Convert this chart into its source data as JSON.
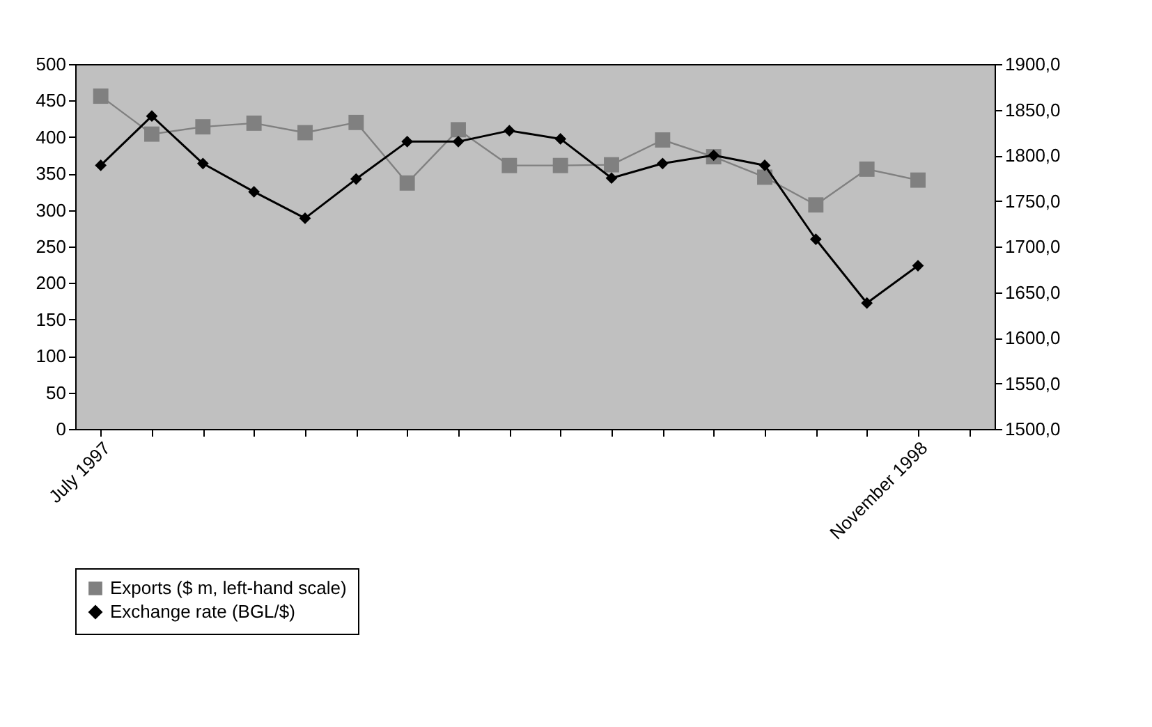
{
  "chart_data": {
    "type": "line",
    "categories": [
      "July 1997",
      null,
      null,
      null,
      null,
      null,
      null,
      null,
      null,
      null,
      null,
      null,
      null,
      null,
      null,
      null,
      "November 1998",
      null
    ],
    "series": [
      {
        "name": "Exports ($ m, left-hand scale)",
        "color": "#808080",
        "marker": "square",
        "values": [
          456,
          404,
          414,
          419,
          406,
          420,
          337,
          410,
          361,
          361,
          362,
          396,
          373,
          345,
          307,
          356,
          341,
          null
        ]
      },
      {
        "name": "Exchange rate (BGL/$)",
        "color": "#000000",
        "marker": "diamond",
        "axis": "y2",
        "values": [
          1789,
          1843,
          1791,
          1760,
          1731,
          1774,
          1815,
          1815,
          1827,
          1818,
          1775,
          1791,
          1800,
          1789,
          1708,
          1638,
          1679,
          null
        ]
      }
    ],
    "ylim": [
      0,
      500
    ],
    "yticks": [
      0,
      50,
      100,
      150,
      200,
      250,
      300,
      350,
      400,
      450,
      500
    ],
    "y2lim": [
      1500,
      1900
    ],
    "y2ticks": [
      {
        "value": 1500,
        "label": "1500,0"
      },
      {
        "value": 1550,
        "label": "1550,0"
      },
      {
        "value": 1600,
        "label": "1600,0"
      },
      {
        "value": 1650,
        "label": "1650,0"
      },
      {
        "value": 1700,
        "label": "1700,0"
      },
      {
        "value": 1750,
        "label": "1750,0"
      },
      {
        "value": 1800,
        "label": "1800,0"
      },
      {
        "value": 1850,
        "label": "1850,0"
      },
      {
        "value": 1900,
        "label": "1900,0"
      }
    ],
    "legend": "bottom",
    "grid": false,
    "line_style": "solid"
  }
}
